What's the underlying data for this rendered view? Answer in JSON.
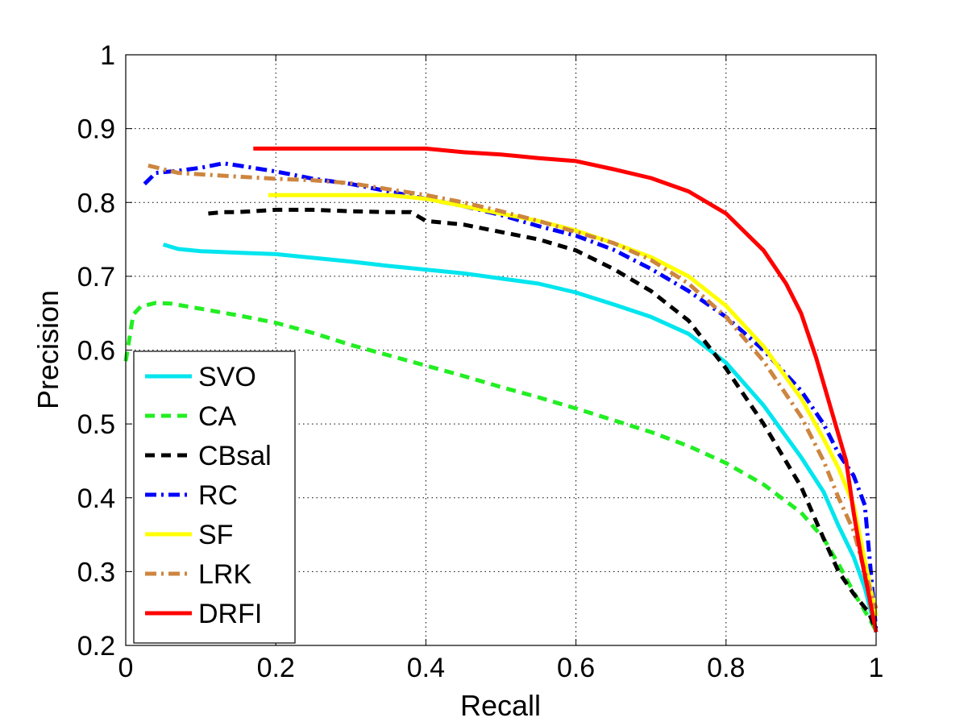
{
  "chart_data": {
    "type": "line",
    "title": "",
    "xlabel": "Recall",
    "ylabel": "Precision",
    "xlim": [
      0,
      1
    ],
    "ylim": [
      0.2,
      1
    ],
    "grid": true,
    "legend_position": "bottom-left",
    "x_ticks": [
      0,
      0.2,
      0.4,
      0.6,
      0.8,
      1
    ],
    "x_tick_labels": [
      "0",
      "0.2",
      "0.4",
      "0.6",
      "0.8",
      "1"
    ],
    "y_ticks": [
      0.2,
      0.3,
      0.4,
      0.5,
      0.6,
      0.7,
      0.8,
      0.9,
      1
    ],
    "y_tick_labels": [
      "0.2",
      "0.3",
      "0.4",
      "0.5",
      "0.6",
      "0.7",
      "0.8",
      "0.9",
      "1"
    ],
    "series": [
      {
        "name": "SVO",
        "color": "#00e5ee",
        "style": "solid",
        "x": [
          0.05,
          0.07,
          0.1,
          0.15,
          0.2,
          0.25,
          0.3,
          0.35,
          0.4,
          0.45,
          0.5,
          0.55,
          0.6,
          0.65,
          0.7,
          0.75,
          0.8,
          0.85,
          0.9,
          0.93,
          0.95,
          0.97,
          0.985,
          1.0
        ],
        "y": [
          0.743,
          0.737,
          0.734,
          0.732,
          0.73,
          0.725,
          0.72,
          0.714,
          0.709,
          0.704,
          0.697,
          0.69,
          0.678,
          0.662,
          0.645,
          0.622,
          0.583,
          0.525,
          0.455,
          0.408,
          0.362,
          0.32,
          0.278,
          0.218
        ]
      },
      {
        "name": "CA",
        "color": "#22ee22",
        "style": "dashed",
        "x": [
          0.0,
          0.01,
          0.02,
          0.04,
          0.06,
          0.1,
          0.15,
          0.2,
          0.25,
          0.3,
          0.35,
          0.4,
          0.45,
          0.5,
          0.55,
          0.6,
          0.65,
          0.7,
          0.75,
          0.8,
          0.85,
          0.9,
          0.93,
          0.95,
          0.97,
          0.99,
          1.0
        ],
        "y": [
          0.585,
          0.648,
          0.659,
          0.664,
          0.663,
          0.656,
          0.647,
          0.637,
          0.623,
          0.607,
          0.593,
          0.579,
          0.565,
          0.55,
          0.536,
          0.521,
          0.505,
          0.489,
          0.47,
          0.447,
          0.418,
          0.38,
          0.345,
          0.31,
          0.272,
          0.238,
          0.22
        ]
      },
      {
        "name": "CBsal",
        "color": "#000000",
        "style": "dashed",
        "x": [
          0.11,
          0.13,
          0.15,
          0.2,
          0.25,
          0.3,
          0.35,
          0.38,
          0.4,
          0.45,
          0.5,
          0.55,
          0.6,
          0.65,
          0.7,
          0.75,
          0.8,
          0.85,
          0.9,
          0.93,
          0.95,
          0.97,
          0.99,
          1.0
        ],
        "y": [
          0.785,
          0.787,
          0.787,
          0.79,
          0.79,
          0.788,
          0.787,
          0.787,
          0.775,
          0.77,
          0.76,
          0.75,
          0.735,
          0.71,
          0.68,
          0.64,
          0.575,
          0.5,
          0.415,
          0.345,
          0.3,
          0.27,
          0.245,
          0.22
        ]
      },
      {
        "name": "RC",
        "color": "#0000ff",
        "style": "dashdot",
        "x": [
          0.025,
          0.04,
          0.07,
          0.1,
          0.13,
          0.15,
          0.2,
          0.25,
          0.3,
          0.35,
          0.4,
          0.45,
          0.5,
          0.55,
          0.6,
          0.65,
          0.7,
          0.75,
          0.8,
          0.85,
          0.9,
          0.93,
          0.95,
          0.97,
          0.985,
          1.0
        ],
        "y": [
          0.825,
          0.84,
          0.843,
          0.847,
          0.853,
          0.85,
          0.842,
          0.832,
          0.825,
          0.815,
          0.805,
          0.795,
          0.783,
          0.768,
          0.755,
          0.736,
          0.71,
          0.68,
          0.645,
          0.6,
          0.545,
          0.5,
          0.46,
          0.43,
          0.39,
          0.22
        ]
      },
      {
        "name": "SF",
        "color": "#ffff00",
        "style": "solid",
        "x": [
          0.19,
          0.2,
          0.25,
          0.3,
          0.35,
          0.4,
          0.45,
          0.5,
          0.55,
          0.6,
          0.65,
          0.7,
          0.75,
          0.8,
          0.85,
          0.9,
          0.93,
          0.95,
          0.97,
          0.98,
          0.99,
          1.0
        ],
        "y": [
          0.81,
          0.81,
          0.81,
          0.81,
          0.81,
          0.805,
          0.795,
          0.785,
          0.775,
          0.762,
          0.745,
          0.726,
          0.7,
          0.66,
          0.605,
          0.535,
          0.48,
          0.44,
          0.39,
          0.34,
          0.29,
          0.24
        ]
      },
      {
        "name": "LRK",
        "color": "#cd853f",
        "style": "dashdot",
        "x": [
          0.03,
          0.05,
          0.07,
          0.1,
          0.15,
          0.2,
          0.25,
          0.3,
          0.35,
          0.4,
          0.45,
          0.5,
          0.55,
          0.6,
          0.65,
          0.7,
          0.75,
          0.8,
          0.85,
          0.9,
          0.93,
          0.95,
          0.97,
          0.985,
          1.0
        ],
        "y": [
          0.85,
          0.845,
          0.84,
          0.838,
          0.835,
          0.832,
          0.83,
          0.826,
          0.818,
          0.81,
          0.8,
          0.788,
          0.775,
          0.76,
          0.745,
          0.722,
          0.69,
          0.645,
          0.585,
          0.51,
          0.45,
          0.4,
          0.355,
          0.3,
          0.25
        ]
      },
      {
        "name": "DRFI",
        "color": "#ff0000",
        "style": "solid",
        "x": [
          0.17,
          0.2,
          0.25,
          0.3,
          0.35,
          0.4,
          0.45,
          0.5,
          0.55,
          0.6,
          0.65,
          0.7,
          0.75,
          0.8,
          0.85,
          0.88,
          0.9,
          0.92,
          0.94,
          0.96,
          0.97,
          0.98,
          0.99,
          1.0
        ],
        "y": [
          0.873,
          0.873,
          0.873,
          0.873,
          0.873,
          0.873,
          0.868,
          0.865,
          0.86,
          0.856,
          0.845,
          0.833,
          0.815,
          0.785,
          0.735,
          0.69,
          0.65,
          0.59,
          0.52,
          0.45,
          0.38,
          0.32,
          0.27,
          0.218
        ]
      }
    ]
  }
}
